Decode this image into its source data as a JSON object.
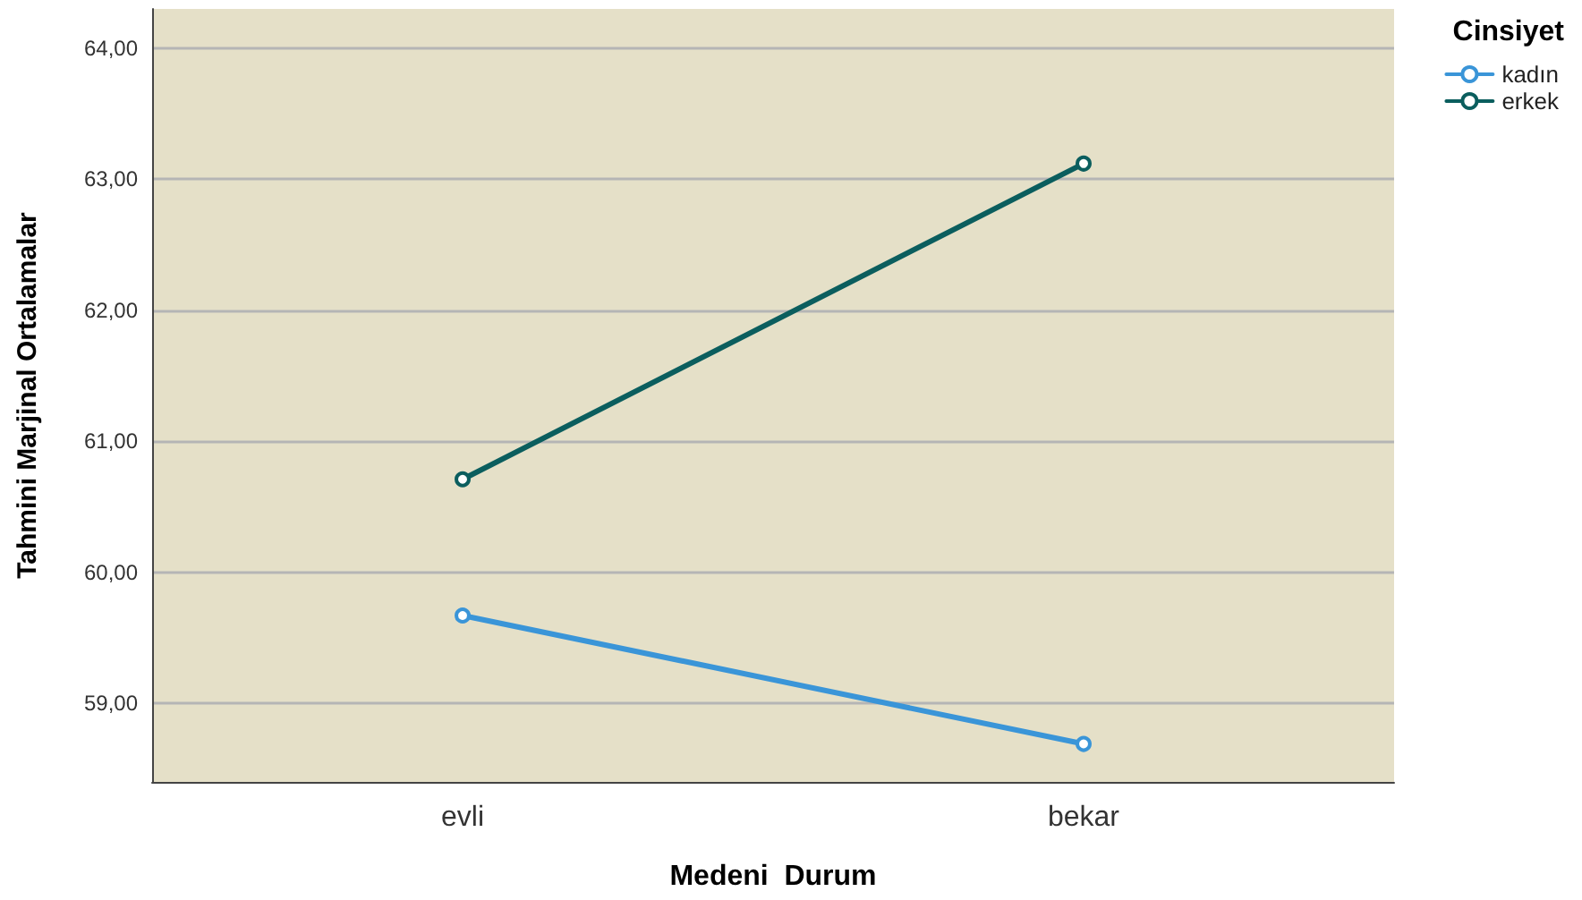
{
  "chart_data": {
    "type": "line",
    "xlabel": "Medeni  Durum",
    "ylabel": "Tahmini Marjinal Ortalamalar",
    "legend_title": "Cinsiyet",
    "categories": [
      "evli",
      "bekar"
    ],
    "series": [
      {
        "name": "kadın",
        "color": "#3a95d8",
        "values": [
          59.67,
          58.69
        ]
      },
      {
        "name": "erkek",
        "color": "#0b5e5e",
        "values": [
          60.71,
          63.12
        ]
      }
    ],
    "ylim": [
      58.4,
      64.3
    ],
    "yticks": [
      {
        "value": 59,
        "label": "59,00"
      },
      {
        "value": 60,
        "label": "60,00"
      },
      {
        "value": 61,
        "label": "61,00"
      },
      {
        "value": 62,
        "label": "62,00"
      },
      {
        "value": 63,
        "label": "63,00"
      },
      {
        "value": 64,
        "label": "64,00"
      }
    ],
    "grid": "y",
    "legend": "top right",
    "marker": "circle",
    "line_style": "solid"
  }
}
